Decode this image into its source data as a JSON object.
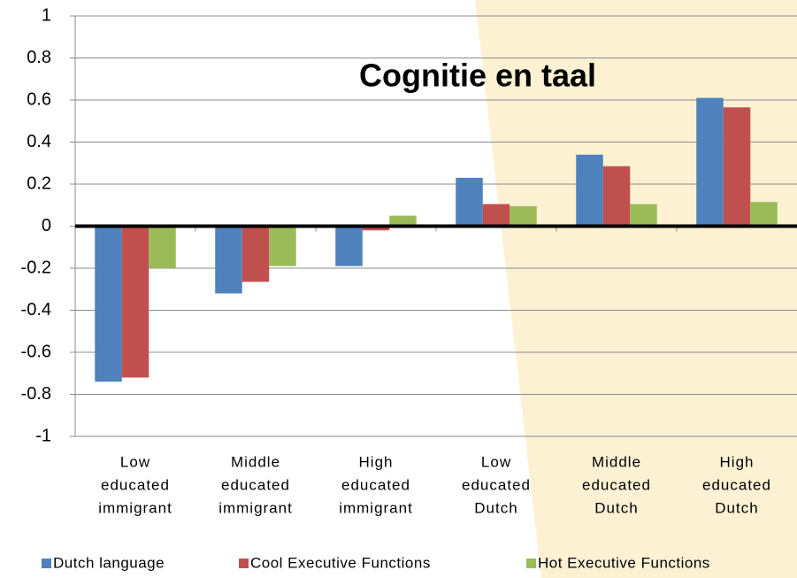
{
  "chart_data": {
    "type": "bar",
    "title": "Cognitie en taal",
    "categories": [
      [
        "Low",
        "educated",
        "immigrant"
      ],
      [
        "Middle",
        "educated",
        "immigrant"
      ],
      [
        "High",
        "educated",
        "immigrant"
      ],
      [
        "Low",
        "educated",
        "Dutch"
      ],
      [
        "Middle",
        "educated",
        "Dutch"
      ],
      [
        "High",
        "educated",
        "Dutch"
      ]
    ],
    "series": [
      {
        "name": "Dutch language",
        "color": "#4f81bd",
        "values": [
          -0.74,
          -0.32,
          -0.19,
          0.23,
          0.34,
          0.61
        ]
      },
      {
        "name": "Cool Executive Functions",
        "color": "#c0504d",
        "values": [
          -0.72,
          -0.265,
          -0.02,
          0.105,
          0.285,
          0.565
        ]
      },
      {
        "name": "Hot Executive Functions",
        "color": "#9bbb59",
        "values": [
          -0.2,
          -0.19,
          0.05,
          0.095,
          0.105,
          0.115
        ]
      }
    ],
    "ylim": [
      -1,
      1
    ],
    "yticks": [
      -1,
      -0.8,
      -0.6,
      -0.4,
      -0.2,
      0,
      0.2,
      0.4,
      0.6,
      0.8,
      1
    ],
    "grid": true,
    "legend": "bottom"
  }
}
